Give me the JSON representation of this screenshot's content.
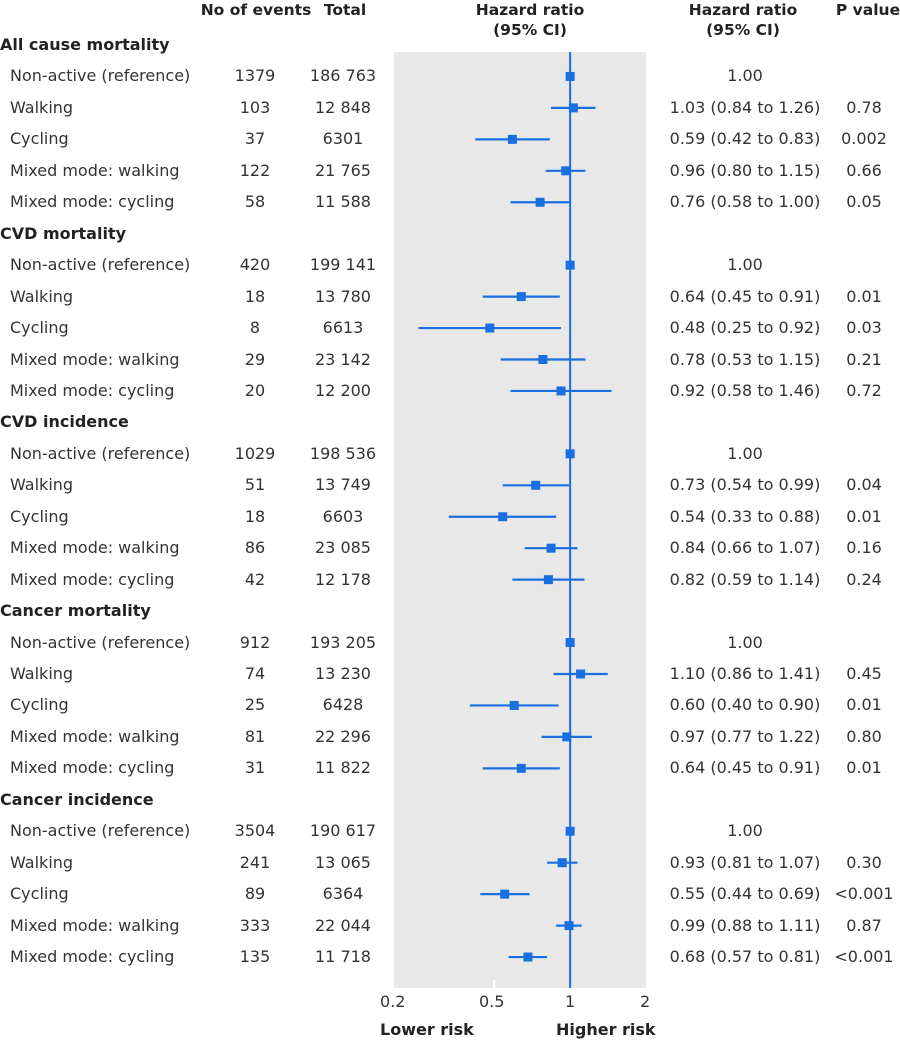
{
  "headers": {
    "events": "No of events",
    "total": "Total",
    "plot_title_line1": "Hazard ratio",
    "plot_title_line2": "(95% CI)",
    "hr_title_line1": "Hazard ratio",
    "hr_title_line2": "(95% CI)",
    "pvalue": "P value"
  },
  "axis_labels": {
    "lower": "Lower risk",
    "higher": "Higher risk"
  },
  "colors": {
    "marker": "#1a6fe0",
    "panel": "#e8e8e8"
  },
  "chart_data": {
    "type": "forest",
    "title": "Hazard ratio (95% CI)",
    "xscale": "log",
    "xlim": [
      0.2,
      2
    ],
    "reference_line": 1,
    "xticks": [
      0.2,
      0.5,
      1,
      2
    ],
    "xtick_labels": [
      "0.2",
      "0.5",
      "1",
      "2"
    ],
    "xlabel_left": "Lower risk",
    "xlabel_right": "Higher risk",
    "grid": false,
    "groups": [
      {
        "name": "All cause mortality",
        "rows": [
          {
            "label": "Non-active (reference)",
            "events": "1379",
            "total": "186 763",
            "hr": 1.0,
            "lo": 1.0,
            "hi": 1.0,
            "hr_text": "1.00",
            "p": ""
          },
          {
            "label": "Walking",
            "events": "103",
            "total": "12 848",
            "hr": 1.03,
            "lo": 0.84,
            "hi": 1.26,
            "hr_text": "1.03 (0.84 to 1.26)",
            "p": "0.78"
          },
          {
            "label": "Cycling",
            "events": "37",
            "total": "6301",
            "hr": 0.59,
            "lo": 0.42,
            "hi": 0.83,
            "hr_text": "0.59 (0.42 to 0.83)",
            "p": "0.002"
          },
          {
            "label": "Mixed mode: walking",
            "events": "122",
            "total": "21 765",
            "hr": 0.96,
            "lo": 0.8,
            "hi": 1.15,
            "hr_text": "0.96 (0.80 to 1.15)",
            "p": "0.66"
          },
          {
            "label": "Mixed mode: cycling",
            "events": "58",
            "total": "11 588",
            "hr": 0.76,
            "lo": 0.58,
            "hi": 1.0,
            "hr_text": "0.76 (0.58 to 1.00)",
            "p": "0.05"
          }
        ]
      },
      {
        "name": "CVD mortality",
        "rows": [
          {
            "label": "Non-active (reference)",
            "events": "420",
            "total": "199 141",
            "hr": 1.0,
            "lo": 1.0,
            "hi": 1.0,
            "hr_text": "1.00",
            "p": ""
          },
          {
            "label": "Walking",
            "events": "18",
            "total": "13 780",
            "hr": 0.64,
            "lo": 0.45,
            "hi": 0.91,
            "hr_text": "0.64 (0.45 to 0.91)",
            "p": "0.01"
          },
          {
            "label": "Cycling",
            "events": "8",
            "total": "6613",
            "hr": 0.48,
            "lo": 0.25,
            "hi": 0.92,
            "hr_text": "0.48 (0.25 to 0.92)",
            "p": "0.03"
          },
          {
            "label": "Mixed mode: walking",
            "events": "29",
            "total": "23 142",
            "hr": 0.78,
            "lo": 0.53,
            "hi": 1.15,
            "hr_text": "0.78 (0.53 to 1.15)",
            "p": "0.21"
          },
          {
            "label": "Mixed mode: cycling",
            "events": "20",
            "total": "12 200",
            "hr": 0.92,
            "lo": 0.58,
            "hi": 1.46,
            "hr_text": "0.92 (0.58 to 1.46)",
            "p": "0.72"
          }
        ]
      },
      {
        "name": "CVD incidence",
        "rows": [
          {
            "label": "Non-active (reference)",
            "events": "1029",
            "total": "198 536",
            "hr": 1.0,
            "lo": 1.0,
            "hi": 1.0,
            "hr_text": "1.00",
            "p": ""
          },
          {
            "label": "Walking",
            "events": "51",
            "total": "13 749",
            "hr": 0.73,
            "lo": 0.54,
            "hi": 0.99,
            "hr_text": "0.73 (0.54 to 0.99)",
            "p": "0.04"
          },
          {
            "label": "Cycling",
            "events": "18",
            "total": "6603",
            "hr": 0.54,
            "lo": 0.33,
            "hi": 0.88,
            "hr_text": "0.54 (0.33 to 0.88)",
            "p": "0.01"
          },
          {
            "label": "Mixed mode: walking",
            "events": "86",
            "total": "23 085",
            "hr": 0.84,
            "lo": 0.66,
            "hi": 1.07,
            "hr_text": "0.84 (0.66 to 1.07)",
            "p": "0.16"
          },
          {
            "label": "Mixed mode: cycling",
            "events": "42",
            "total": "12 178",
            "hr": 0.82,
            "lo": 0.59,
            "hi": 1.14,
            "hr_text": "0.82 (0.59 to 1.14)",
            "p": "0.24"
          }
        ]
      },
      {
        "name": "Cancer mortality",
        "rows": [
          {
            "label": "Non-active (reference)",
            "events": "912",
            "total": "193 205",
            "hr": 1.0,
            "lo": 1.0,
            "hi": 1.0,
            "hr_text": "1.00",
            "p": ""
          },
          {
            "label": "Walking",
            "events": "74",
            "total": "13 230",
            "hr": 1.1,
            "lo": 0.86,
            "hi": 1.41,
            "hr_text": "1.10 (0.86 to 1.41)",
            "p": "0.45"
          },
          {
            "label": "Cycling",
            "events": "25",
            "total": "6428",
            "hr": 0.6,
            "lo": 0.4,
            "hi": 0.9,
            "hr_text": "0.60 (0.40 to 0.90)",
            "p": "0.01"
          },
          {
            "label": "Mixed mode: walking",
            "events": "81",
            "total": "22 296",
            "hr": 0.97,
            "lo": 0.77,
            "hi": 1.22,
            "hr_text": "0.97 (0.77 to 1.22)",
            "p": "0.80"
          },
          {
            "label": "Mixed mode: cycling",
            "events": "31",
            "total": "11 822",
            "hr": 0.64,
            "lo": 0.45,
            "hi": 0.91,
            "hr_text": "0.64 (0.45 to 0.91)",
            "p": "0.01"
          }
        ]
      },
      {
        "name": "Cancer incidence",
        "rows": [
          {
            "label": "Non-active (reference)",
            "events": "3504",
            "total": "190 617",
            "hr": 1.0,
            "lo": 1.0,
            "hi": 1.0,
            "hr_text": "1.00",
            "p": ""
          },
          {
            "label": "Walking",
            "events": "241",
            "total": "13 065",
            "hr": 0.93,
            "lo": 0.81,
            "hi": 1.07,
            "hr_text": "0.93 (0.81 to 1.07)",
            "p": "0.30"
          },
          {
            "label": "Cycling",
            "events": "89",
            "total": "6364",
            "hr": 0.55,
            "lo": 0.44,
            "hi": 0.69,
            "hr_text": "0.55 (0.44 to 0.69)",
            "p": "<0.001"
          },
          {
            "label": "Mixed mode: walking",
            "events": "333",
            "total": "22 044",
            "hr": 0.99,
            "lo": 0.88,
            "hi": 1.11,
            "hr_text": "0.99 (0.88 to 1.11)",
            "p": "0.87"
          },
          {
            "label": "Mixed mode: cycling",
            "events": "135",
            "total": "11 718",
            "hr": 0.68,
            "lo": 0.57,
            "hi": 0.81,
            "hr_text": "0.68 (0.57 to 0.81)",
            "p": "<0.001"
          }
        ]
      }
    ]
  }
}
